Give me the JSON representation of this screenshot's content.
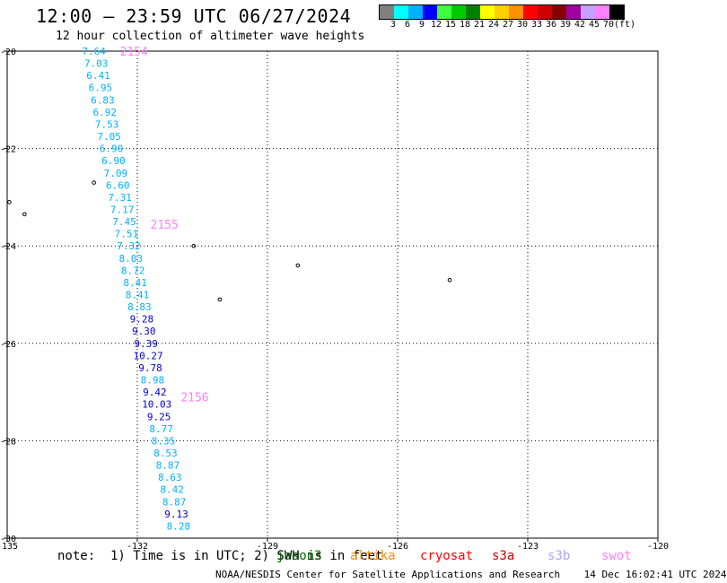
{
  "title": "12:00 – 23:59 UTC 06/27/2024",
  "subtitle": "12 hour collection of altimeter wave heights",
  "colorbar": {
    "colors": [
      "#808080",
      "#00ffff",
      "#00b0ff",
      "#0000ff",
      "#40ff40",
      "#00cc00",
      "#008000",
      "#ffff00",
      "#ffd000",
      "#ff9000",
      "#ff0000",
      "#cc0000",
      "#880000",
      "#a000a0",
      "#c8a0ff",
      "#ff80ff",
      "#000000"
    ],
    "labels": [
      "3",
      "6",
      "9",
      "12",
      "15",
      "18",
      "21",
      "24",
      "27",
      "30",
      "33",
      "36",
      "39",
      "42",
      "45",
      "70",
      "(ft)"
    ]
  },
  "axes": {
    "x_range": [
      -135,
      -120
    ],
    "y_range": [
      -30,
      -20
    ],
    "x_ticks": [
      "-135",
      "-132",
      "-129",
      "-126",
      "-123",
      "-120"
    ],
    "y_ticks": [
      "-20",
      "-22",
      "-24",
      "-26",
      "-28",
      "-30"
    ],
    "grid": "dotted"
  },
  "chart_data": {
    "type": "scatter",
    "track_labels": [
      {
        "text": "2154",
        "lon": -132.4,
        "lat": -20.0
      },
      {
        "text": "2155",
        "lon": -131.7,
        "lat": -23.55
      },
      {
        "text": "2156",
        "lon": -131.0,
        "lat": -27.1
      }
    ],
    "points": [
      {
        "lon": -133.0,
        "lat": -20.0,
        "swh": "7.64",
        "color": "#00b0ff"
      },
      {
        "lon": -132.95,
        "lat": -20.25,
        "swh": "7.03",
        "color": "#00b0ff"
      },
      {
        "lon": -132.9,
        "lat": -20.5,
        "swh": "6.41",
        "color": "#00b0ff"
      },
      {
        "lon": -132.85,
        "lat": -20.75,
        "swh": "6.95",
        "color": "#00b0ff"
      },
      {
        "lon": -132.8,
        "lat": -21.0,
        "swh": "6.83",
        "color": "#00b0ff"
      },
      {
        "lon": -132.75,
        "lat": -21.25,
        "swh": "6.92",
        "color": "#00b0ff"
      },
      {
        "lon": -132.7,
        "lat": -21.5,
        "swh": "7.53",
        "color": "#00b0ff"
      },
      {
        "lon": -132.65,
        "lat": -21.75,
        "swh": "7.05",
        "color": "#00b0ff"
      },
      {
        "lon": -132.6,
        "lat": -22.0,
        "swh": "6.90",
        "color": "#00b0ff"
      },
      {
        "lon": -132.55,
        "lat": -22.25,
        "swh": "6.90",
        "color": "#00b0ff"
      },
      {
        "lon": -132.5,
        "lat": -22.5,
        "swh": "7.09",
        "color": "#00b0ff"
      },
      {
        "lon": -132.45,
        "lat": -22.75,
        "swh": "6.60",
        "color": "#00b0ff"
      },
      {
        "lon": -132.4,
        "lat": -23.0,
        "swh": "7.31",
        "color": "#00b0ff"
      },
      {
        "lon": -132.35,
        "lat": -23.25,
        "swh": "7.17",
        "color": "#00b0ff"
      },
      {
        "lon": -132.3,
        "lat": -23.5,
        "swh": "7.45",
        "color": "#00b0ff"
      },
      {
        "lon": -132.25,
        "lat": -23.75,
        "swh": "7.51",
        "color": "#00b0ff"
      },
      {
        "lon": -132.2,
        "lat": -24.0,
        "swh": "7.32",
        "color": "#00b0ff"
      },
      {
        "lon": -132.15,
        "lat": -24.25,
        "swh": "8.03",
        "color": "#00b0ff"
      },
      {
        "lon": -132.1,
        "lat": -24.5,
        "swh": "8.72",
        "color": "#00b0ff"
      },
      {
        "lon": -132.05,
        "lat": -24.75,
        "swh": "8.41",
        "color": "#00b0ff"
      },
      {
        "lon": -132.0,
        "lat": -25.0,
        "swh": "8.41",
        "color": "#00b0ff"
      },
      {
        "lon": -131.95,
        "lat": -25.25,
        "swh": "8.83",
        "color": "#00b0ff"
      },
      {
        "lon": -131.9,
        "lat": -25.5,
        "swh": "9.28",
        "color": "#0000cc"
      },
      {
        "lon": -131.85,
        "lat": -25.75,
        "swh": "9.30",
        "color": "#0000cc"
      },
      {
        "lon": -131.8,
        "lat": -26.0,
        "swh": "9.39",
        "color": "#0000cc"
      },
      {
        "lon": -131.75,
        "lat": -26.25,
        "swh": "10.27",
        "color": "#0000cc"
      },
      {
        "lon": -131.7,
        "lat": -26.5,
        "swh": "9.78",
        "color": "#0000cc"
      },
      {
        "lon": -131.65,
        "lat": -26.75,
        "swh": "8.98",
        "color": "#00b0ff"
      },
      {
        "lon": -131.6,
        "lat": -27.0,
        "swh": "9.42",
        "color": "#0000cc"
      },
      {
        "lon": -131.55,
        "lat": -27.25,
        "swh": "10.03",
        "color": "#0000cc"
      },
      {
        "lon": -131.5,
        "lat": -27.5,
        "swh": "9.25",
        "color": "#0000cc"
      },
      {
        "lon": -131.45,
        "lat": -27.75,
        "swh": "8.77",
        "color": "#00b0ff"
      },
      {
        "lon": -131.4,
        "lat": -28.0,
        "swh": "8.35",
        "color": "#00b0ff"
      },
      {
        "lon": -131.35,
        "lat": -28.25,
        "swh": "8.53",
        "color": "#00b0ff"
      },
      {
        "lon": -131.3,
        "lat": -28.5,
        "swh": "8.87",
        "color": "#00b0ff"
      },
      {
        "lon": -131.25,
        "lat": -28.75,
        "swh": "8.63",
        "color": "#00b0ff"
      },
      {
        "lon": -131.2,
        "lat": -29.0,
        "swh": "8.42",
        "color": "#00b0ff"
      },
      {
        "lon": -131.15,
        "lat": -29.25,
        "swh": "8.87",
        "color": "#00b0ff"
      },
      {
        "lon": -131.1,
        "lat": -29.5,
        "swh": "9.13",
        "color": "#0000cc"
      },
      {
        "lon": -131.05,
        "lat": -29.75,
        "swh": "8.28",
        "color": "#00b0ff"
      }
    ],
    "islands": [
      {
        "lon": -134.95,
        "lat": -23.1
      },
      {
        "lon": -134.6,
        "lat": -23.35
      },
      {
        "lon": -133.0,
        "lat": -22.7
      },
      {
        "lon": -130.7,
        "lat": -24.0
      },
      {
        "lon": -130.1,
        "lat": -25.1
      },
      {
        "lon": -128.3,
        "lat": -24.4
      },
      {
        "lon": -124.8,
        "lat": -24.7
      }
    ]
  },
  "note": "note:  1) Time is in UTC; 2) SWH is in feet",
  "satellites": [
    {
      "name": "jason3",
      "color": "#006400"
    },
    {
      "name": "altika",
      "color": "#ff8c00"
    },
    {
      "name": "cryosat",
      "color": "#ff0000"
    },
    {
      "name": "s3a",
      "color": "#cc0000"
    },
    {
      "name": "s3b",
      "color": "#b0a0ff"
    },
    {
      "name": "swot",
      "color": "#ff80ff"
    }
  ],
  "footer": "NOAA/NESDIS Center for Satellite Applications and Research    14 Dec 16:02:41 UTC 2024"
}
